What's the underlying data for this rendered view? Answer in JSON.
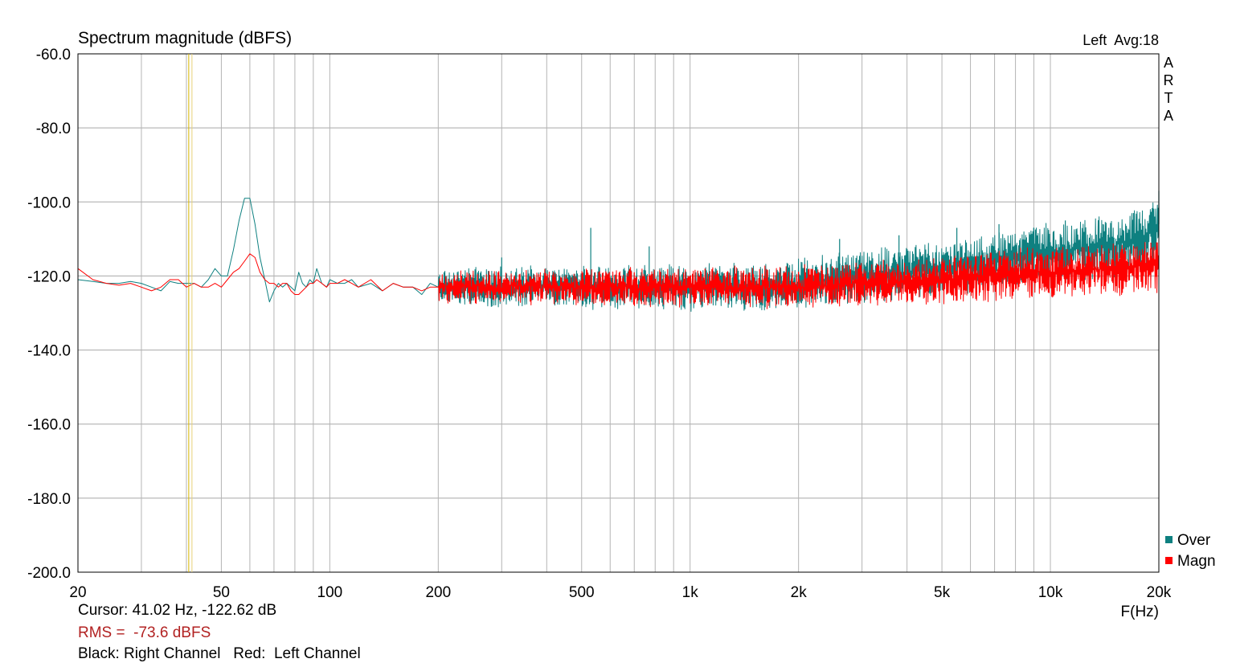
{
  "chart_data": {
    "type": "line",
    "title": "Spectrum magnitude (dBFS)",
    "header_right": "Left  Avg:18",
    "watermark": [
      "A",
      "R",
      "T",
      "A"
    ],
    "xlabel": "F(Hz)",
    "x_scale": "log",
    "xlim": [
      20,
      20000
    ],
    "ylim": [
      -200,
      -60
    ],
    "y_ticks": [
      -60,
      -80,
      -100,
      -120,
      -140,
      -160,
      -180,
      -200
    ],
    "y_tick_labels": [
      "-60.0",
      "-80.0",
      "-100.0",
      "-120.0",
      "-140.0",
      "-160.0",
      "-180.0",
      "-200.0"
    ],
    "x_ticks": [
      20,
      50,
      100,
      200,
      500,
      1000,
      2000,
      5000,
      10000,
      20000
    ],
    "x_tick_labels": [
      "20",
      "50",
      "100",
      "200",
      "500",
      "1k",
      "2k",
      "5k",
      "10k",
      "20k"
    ],
    "grid": true,
    "legend_position": "bottom-right",
    "cursor_hz": 41.02,
    "series": [
      {
        "name": "Over",
        "color": "#0e8080",
        "x": [
          20,
          22,
          24,
          26,
          28,
          30,
          32,
          34,
          36,
          38,
          40,
          42,
          44,
          46,
          48,
          50,
          52,
          54,
          56,
          58,
          60,
          62,
          64,
          66,
          68,
          70,
          72,
          74,
          76,
          78,
          80,
          82,
          84,
          86,
          88,
          90,
          92,
          95,
          98,
          100,
          105,
          110,
          115,
          120,
          130,
          140,
          150,
          160,
          170,
          180,
          190,
          200,
          300,
          400,
          500,
          530,
          600,
          700,
          770,
          800,
          1000,
          1500,
          2000,
          2500,
          3000,
          4000,
          5000,
          6000,
          7000,
          8000,
          10000,
          12000,
          15000,
          18000,
          19500,
          20000
        ],
        "values": [
          -121,
          -121.5,
          -122,
          -122,
          -121.5,
          -122,
          -123,
          -124,
          -121.5,
          -122,
          -122,
          -122,
          -123,
          -121,
          -118,
          -120,
          -120,
          -113,
          -105,
          -99,
          -99,
          -106,
          -115,
          -121,
          -127,
          -124,
          -122,
          -123,
          -122,
          -123,
          -124,
          -119,
          -122,
          -123,
          -121,
          -122,
          -118,
          -122,
          -123,
          -121,
          -122,
          -122,
          -121,
          -123,
          -122,
          -124,
          -122,
          -123,
          -123,
          -125,
          -122,
          -123,
          -123,
          -123,
          -123,
          -123,
          -123,
          -123,
          -123,
          -123,
          -123,
          -123,
          -122,
          -121,
          -120,
          -119,
          -118,
          -117,
          -116,
          -115,
          -114,
          -113,
          -112,
          -110,
          -107,
          -106
        ],
        "peaks": [
          {
            "x": 300,
            "value": -115
          },
          {
            "x": 530,
            "value": -107
          },
          {
            "x": 770,
            "value": -112
          },
          {
            "x": 2600,
            "value": -110
          },
          {
            "x": 3800,
            "value": -109
          },
          {
            "x": 5500,
            "value": -107
          },
          {
            "x": 7200,
            "value": -106
          },
          {
            "x": 9000,
            "value": -107
          },
          {
            "x": 11000,
            "value": -105
          },
          {
            "x": 14000,
            "value": -106
          },
          {
            "x": 17000,
            "value": -103
          },
          {
            "x": 20000,
            "value": -97
          }
        ]
      },
      {
        "name": "Magn",
        "color": "#ff0000",
        "x": [
          20,
          22,
          24,
          26,
          28,
          30,
          32,
          34,
          36,
          38,
          40,
          42,
          44,
          46,
          48,
          50,
          52,
          54,
          56,
          58,
          60,
          62,
          64,
          66,
          68,
          70,
          72,
          74,
          76,
          78,
          80,
          82,
          84,
          86,
          88,
          90,
          92,
          95,
          98,
          100,
          105,
          110,
          115,
          120,
          130,
          140,
          150,
          160,
          170,
          180,
          190,
          200,
          300,
          400,
          500,
          600,
          700,
          800,
          1000,
          1500,
          2000,
          2500,
          3000,
          4000,
          5000,
          6000,
          7000,
          8000,
          10000,
          12000,
          15000,
          18000,
          20000
        ],
        "values": [
          -118,
          -121,
          -122,
          -122.5,
          -122,
          -123,
          -124,
          -123,
          -121,
          -121,
          -123,
          -122,
          -123,
          -123,
          -122,
          -123,
          -121,
          -119,
          -118,
          -116,
          -114,
          -115,
          -119,
          -121,
          -122,
          -122,
          -123,
          -122,
          -122,
          -124,
          -125,
          -125,
          -124,
          -123,
          -122,
          -122,
          -121,
          -122,
          -123,
          -122,
          -122,
          -121,
          -122,
          -123,
          -121,
          -124,
          -122,
          -123,
          -123,
          -124,
          -123,
          -123,
          -123,
          -123,
          -123,
          -123,
          -123,
          -123,
          -123,
          -123,
          -123,
          -122.5,
          -122,
          -121.5,
          -121,
          -120.5,
          -120,
          -119.5,
          -119,
          -118.5,
          -118,
          -117.5,
          -117
        ],
        "peaks": [
          {
            "x": 700,
            "value": -119
          },
          {
            "x": 1100,
            "value": -118
          },
          {
            "x": 2000,
            "value": -119
          },
          {
            "x": 5000,
            "value": -118
          },
          {
            "x": 8000,
            "value": -117
          },
          {
            "x": 12000,
            "value": -116
          },
          {
            "x": 16000,
            "value": -114
          },
          {
            "x": 19000,
            "value": -111
          }
        ]
      }
    ]
  },
  "info": {
    "cursor": "Cursor: 41.02 Hz, -122.62 dB",
    "rms": "RMS =  -73.6 dBFS",
    "key": "Black: Right Channel   Red:  Left Channel"
  }
}
